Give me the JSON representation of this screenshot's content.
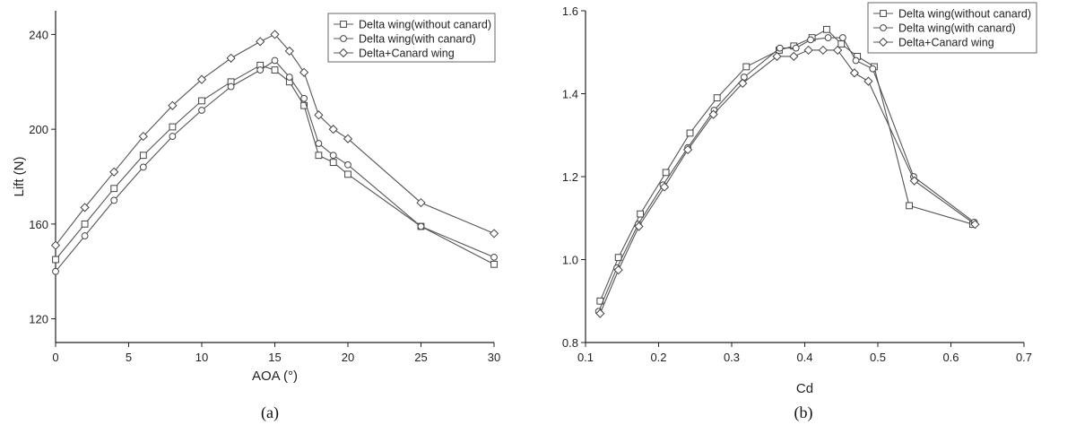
{
  "chart_data": [
    {
      "id": "a",
      "type": "line",
      "caption": "(a)",
      "xlabel": "AOA (°)",
      "ylabel": "Lift (N)",
      "xlim": [
        0,
        30
      ],
      "ylim": [
        110,
        250
      ],
      "xticks": [
        0,
        5,
        10,
        15,
        20,
        25,
        30
      ],
      "yticks": [
        120,
        160,
        200,
        240
      ],
      "grid": false,
      "legend_position": "top-right",
      "series": [
        {
          "name": "Delta wing(without canard)",
          "marker": "square",
          "x": [
            0,
            2,
            4,
            6,
            8,
            10,
            12,
            14,
            15,
            16,
            17,
            18,
            19,
            20,
            25,
            30
          ],
          "y": [
            145,
            160,
            175,
            189,
            201,
            212,
            220,
            227,
            225,
            220,
            210,
            189,
            186,
            181,
            159,
            143
          ]
        },
        {
          "name": "Delta wing(with canard)",
          "marker": "circle",
          "x": [
            0,
            2,
            4,
            6,
            8,
            10,
            12,
            14,
            15,
            16,
            17,
            18,
            19,
            20,
            25,
            30
          ],
          "y": [
            140,
            155,
            170,
            184,
            197,
            208,
            218,
            225,
            229,
            222,
            213,
            194,
            189,
            185,
            159,
            146
          ]
        },
        {
          "name": "Delta+Canard wing",
          "marker": "diamond",
          "x": [
            0,
            2,
            4,
            6,
            8,
            10,
            12,
            14,
            15,
            16,
            17,
            18,
            19,
            20,
            25,
            30
          ],
          "y": [
            151,
            167,
            182,
            197,
            210,
            221,
            230,
            237,
            240,
            233,
            224,
            206,
            200,
            196,
            169,
            156
          ]
        }
      ]
    },
    {
      "id": "b",
      "type": "line",
      "caption": "(b)",
      "xlabel": "Cd",
      "ylabel": "",
      "xlim": [
        0.1,
        0.7
      ],
      "ylim": [
        0.8,
        1.6
      ],
      "xticks": [
        0.1,
        0.2,
        0.3,
        0.4,
        0.5,
        0.6,
        0.7
      ],
      "yticks": [
        0.8,
        1.0,
        1.2,
        1.4,
        1.6
      ],
      "tick_labels_x": [
        "0.1",
        "0.2",
        "0.3",
        "0.4",
        "0.5",
        "0.6",
        "0.7"
      ],
      "tick_labels_y": [
        "0.8",
        "1.0",
        "1.2",
        "1.4",
        "1.6"
      ],
      "grid": false,
      "legend_position": "top-right",
      "series": [
        {
          "name": "Delta wing(without canard)",
          "marker": "square",
          "x": [
            0.12,
            0.145,
            0.175,
            0.21,
            0.243,
            0.28,
            0.32,
            0.365,
            0.385,
            0.41,
            0.43,
            0.45,
            0.472,
            0.495,
            0.543,
            0.63
          ],
          "y": [
            0.9,
            1.005,
            1.11,
            1.21,
            1.305,
            1.39,
            1.465,
            1.505,
            1.515,
            1.535,
            1.555,
            1.52,
            1.49,
            1.465,
            1.13,
            1.085
          ]
        },
        {
          "name": "Delta wing(with canard)",
          "marker": "circle",
          "x": [
            0.118,
            0.143,
            0.172,
            0.206,
            0.24,
            0.276,
            0.317,
            0.366,
            0.388,
            0.408,
            0.432,
            0.452,
            0.47,
            0.493,
            0.549,
            0.632
          ],
          "y": [
            0.875,
            0.98,
            1.085,
            1.18,
            1.27,
            1.36,
            1.44,
            1.51,
            1.51,
            1.53,
            1.535,
            1.535,
            1.48,
            1.46,
            1.2,
            1.09
          ]
        },
        {
          "name": "Delta+Canard wing",
          "marker": "diamond",
          "x": [
            0.12,
            0.145,
            0.173,
            0.208,
            0.24,
            0.275,
            0.315,
            0.362,
            0.385,
            0.405,
            0.425,
            0.445,
            0.468,
            0.487,
            0.55,
            0.633
          ],
          "y": [
            0.87,
            0.975,
            1.08,
            1.175,
            1.265,
            1.35,
            1.425,
            1.49,
            1.49,
            1.505,
            1.505,
            1.505,
            1.45,
            1.43,
            1.19,
            1.085
          ]
        }
      ]
    }
  ]
}
